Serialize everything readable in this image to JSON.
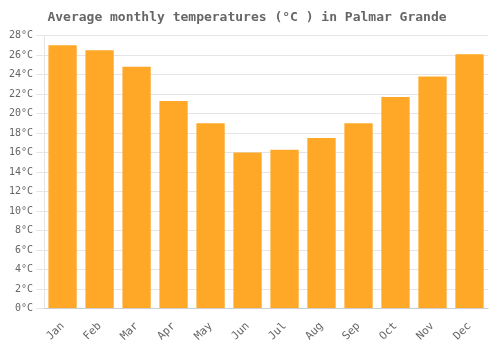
{
  "chart_data": {
    "type": "bar",
    "title": "Average monthly temperatures (°C ) in Palmar Grande",
    "categories": [
      "Jan",
      "Feb",
      "Mar",
      "Apr",
      "May",
      "Jun",
      "Jul",
      "Aug",
      "Sep",
      "Oct",
      "Nov",
      "Dec"
    ],
    "values": [
      27.0,
      26.5,
      24.8,
      21.3,
      19.0,
      16.0,
      16.3,
      17.5,
      19.0,
      21.7,
      23.8,
      26.1
    ],
    "color": "#FFA726",
    "ylim": [
      0,
      28
    ],
    "yticks": [
      {
        "value": 0,
        "label": "0°C"
      },
      {
        "value": 2,
        "label": "2°C"
      },
      {
        "value": 4,
        "label": "4°C"
      },
      {
        "value": 6,
        "label": "6°C"
      },
      {
        "value": 8,
        "label": "8°C"
      },
      {
        "value": 10,
        "label": "10°C"
      },
      {
        "value": 12,
        "label": "12°C"
      },
      {
        "value": 14,
        "label": "14°C"
      },
      {
        "value": 16,
        "label": "16°C"
      },
      {
        "value": 18,
        "label": "18°C"
      },
      {
        "value": 20,
        "label": "20°C"
      },
      {
        "value": 22,
        "label": "22°C"
      },
      {
        "value": 24,
        "label": "24°C"
      },
      {
        "value": 26,
        "label": "26°C"
      },
      {
        "value": 28,
        "label": "28°C"
      }
    ],
    "grid": true
  }
}
